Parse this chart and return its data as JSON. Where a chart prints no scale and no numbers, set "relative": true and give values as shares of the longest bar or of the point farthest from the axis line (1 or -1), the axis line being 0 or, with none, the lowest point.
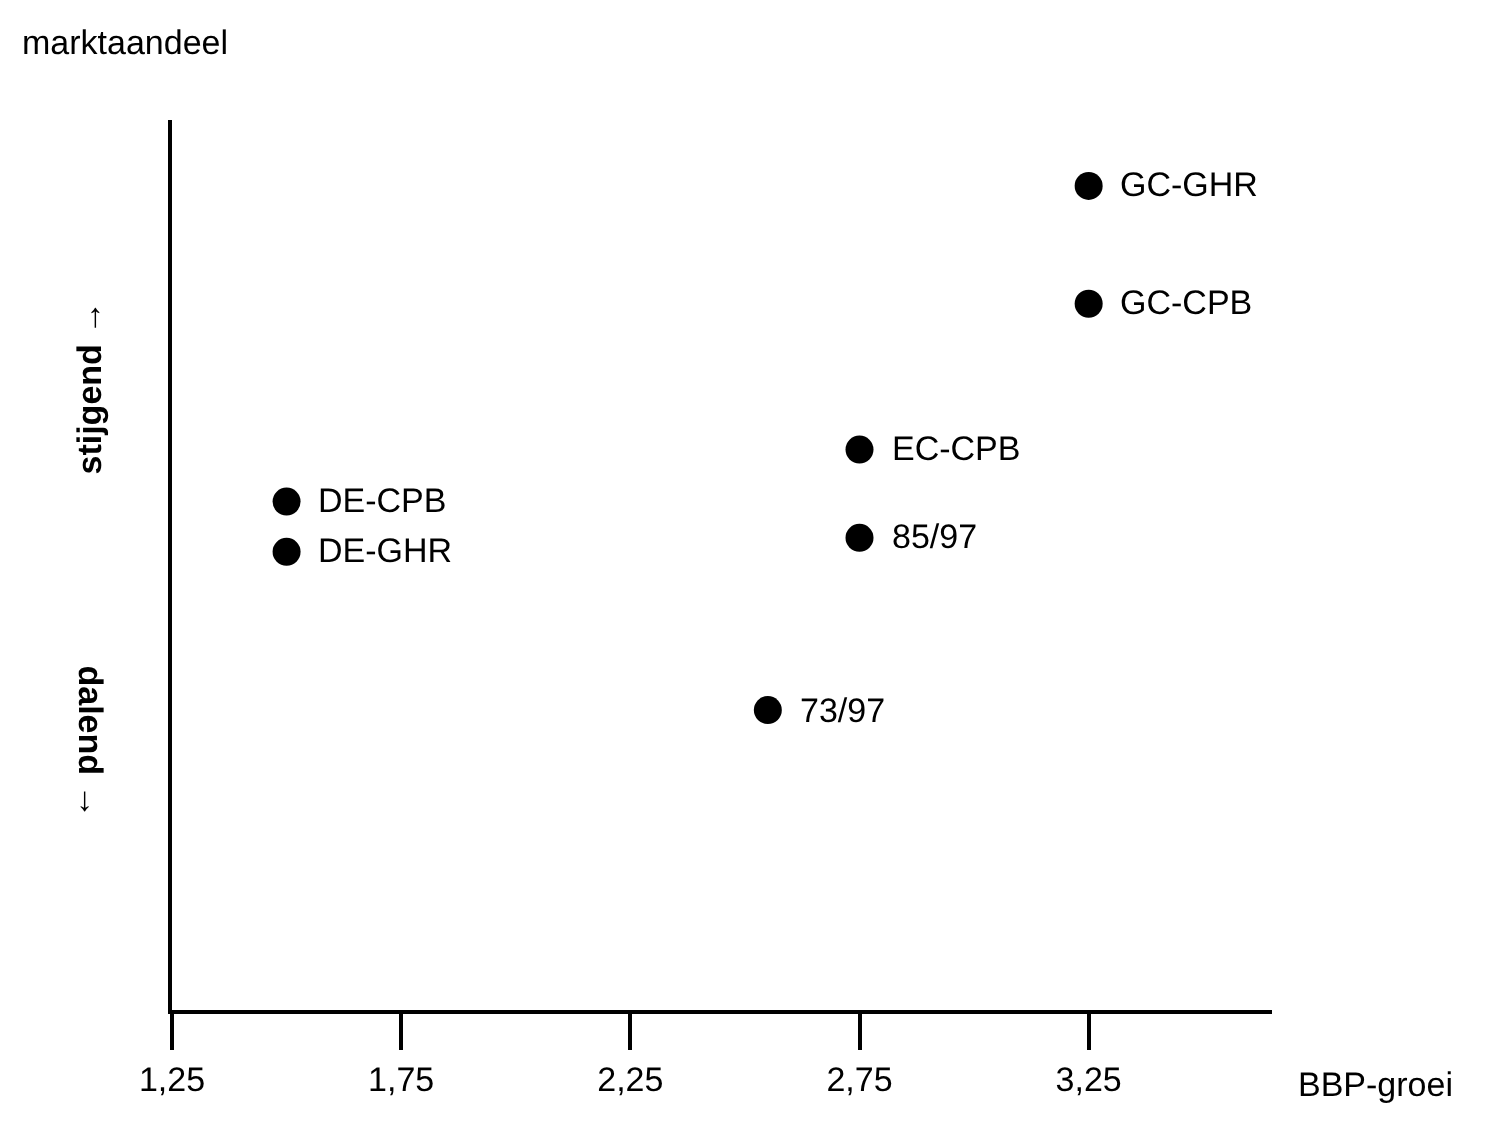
{
  "chart_data": {
    "type": "scatter",
    "relative": true,
    "xlabel": "BBP-groei",
    "ylabel": "marktaandeel",
    "x": [
      3.25,
      3.25,
      2.75,
      2.75,
      1.5,
      1.5,
      2.55
    ],
    "series": [
      {
        "color": "#000000",
        "values": [
          1,
          0.857,
          0.68,
          0.573,
          0.617,
          0.556,
          0.364
        ]
      }
    ],
    "xlim": [
      1.25,
      3.65
    ],
    "xticks": [
      {
        "value": 1.25,
        "label": "1,25"
      },
      {
        "value": 1.75,
        "label": "1,75"
      },
      {
        "value": 2.25,
        "label": "2,25"
      },
      {
        "value": 2.75,
        "label": "2,75"
      },
      {
        "value": 3.25,
        "label": "3,25"
      }
    ],
    "marker": "circle",
    "annotations": [
      {
        "text": "GC-GHR",
        "x": 3.25,
        "y": 1
      },
      {
        "text": "GC-CPB",
        "x": 3.25,
        "y": 0.857
      },
      {
        "text": "EC-CPB",
        "x": 2.75,
        "y": 0.68
      },
      {
        "text": "85/97",
        "x": 2.75,
        "y": 0.573
      },
      {
        "text": "DE-CPB",
        "x": 1.5,
        "y": 0.617
      },
      {
        "text": "DE-GHR",
        "x": 1.5,
        "y": 0.556
      },
      {
        "text": "73/97",
        "x": 2.55,
        "y": 0.364
      },
      "stijgend →",
      "dalend →"
    ]
  }
}
